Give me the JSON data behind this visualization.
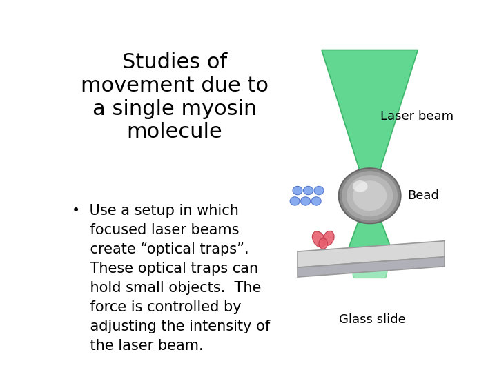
{
  "background_color": "#ffffff",
  "title": "Studies of\nmovement due to\na single myosin\nmolecule",
  "title_fontsize": 22,
  "bullet_fontsize": 15,
  "label_laser_beam": "Laser beam",
  "label_bead": "Bead",
  "label_glass": "Glass slide",
  "laser_color": "#3ecf7a",
  "laser_edge_color": "#2aaa5a",
  "bead_color_light": "#c8c8c8",
  "bead_color_dark": "#888888",
  "slide_top_color": "#d8d8d8",
  "slide_side_color": "#b0b0b8",
  "blue_circle_color": "#88aaee",
  "blue_circle_edge": "#5577cc",
  "myosin_color": "#e86070",
  "myosin_edge": "#bb3344"
}
